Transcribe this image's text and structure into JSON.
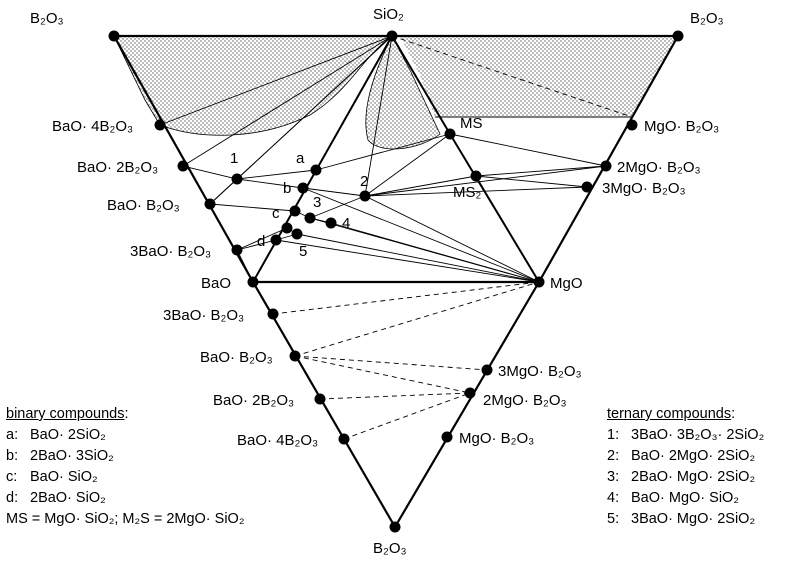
{
  "vertices": {
    "sio2": "SiO₂",
    "b2o3_top_left": "B₂O₃",
    "b2o3_top_right": "B₂O₃",
    "bao": "BaO",
    "mgo": "MgO",
    "b2o3_bottom": "B₂O₃"
  },
  "upper_left_edge_labels": [
    "BaO· 4B₂O₃",
    "BaO· 2B₂O₃",
    "BaO· B₂O₃",
    "3BaO· B₂O₃"
  ],
  "upper_right_edge_labels": [
    "MgO· B₂O₃",
    "2MgO· B₂O₃",
    "3MgO· B₂O₃"
  ],
  "lower_left_edge_labels": [
    "3BaO· B₂O₃",
    "BaO· B₂O₃",
    "BaO· 2B₂O₃",
    "BaO· 4B₂O₃"
  ],
  "lower_right_edge_labels": [
    "3MgO· B₂O₃",
    "2MgO· B₂O₃",
    "MgO· B₂O₃"
  ],
  "inner_labels": {
    "ms": "MS",
    "ms2": "MS₂",
    "a": "a",
    "b": "b",
    "c": "c",
    "d": "d",
    "t1": "1",
    "t2": "2",
    "t3": "3",
    "t4": "4",
    "t5": "5"
  },
  "binary_legend": {
    "title": "binary compounds",
    "title_suffix": ":",
    "items": [
      {
        "key": "a:",
        "text": "BaO· 2SiO₂"
      },
      {
        "key": "b:",
        "text": "2BaO· 3SiO₂"
      },
      {
        "key": "c:",
        "text": "BaO· SiO₂"
      },
      {
        "key": "d:",
        "text": "2BaO· SiO₂"
      }
    ],
    "footnote": "MS = MgO· SiO₂; M₂S = 2MgO· SiO₂"
  },
  "ternary_legend": {
    "title": "ternary compounds",
    "title_suffix": ":",
    "items": [
      {
        "key": "1:",
        "text": "3BaO· 3B₂O₃· 2SiO₂"
      },
      {
        "key": "2:",
        "text": "BaO· 2MgO· 2SiO₂"
      },
      {
        "key": "3:",
        "text": "2BaO· MgO· 2SiO₂"
      },
      {
        "key": "4:",
        "text": "BaO· MgO· SiO₂"
      },
      {
        "key": "5:",
        "text": "3BaO· MgO· 2SiO₂"
      }
    ]
  }
}
